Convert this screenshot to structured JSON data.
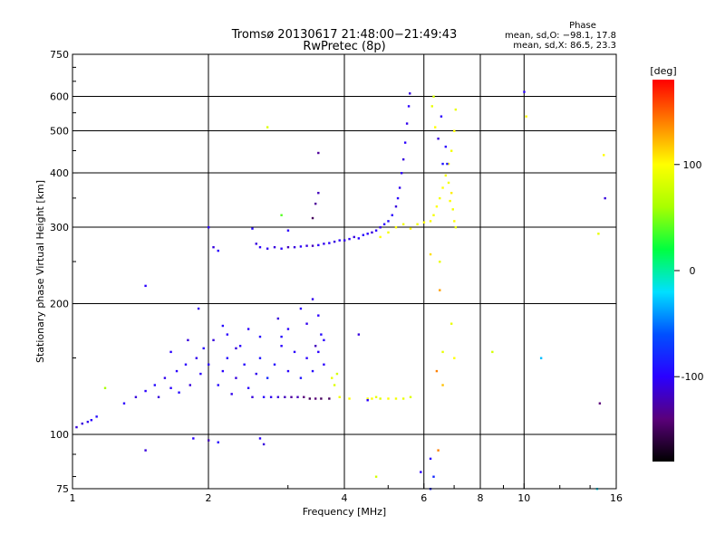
{
  "chart_data": {
    "type": "scatter",
    "title": "Tromsø 20130617 21:48:00−21:49:43",
    "subtitle": "RwPretec (8p)",
    "xlabel": "Frequency [MHz]",
    "ylabel": "Stationary phase Virtual Height [km]",
    "x_scale": "log",
    "y_scale": "log",
    "xlim": [
      1,
      16
    ],
    "ylim": [
      75,
      750
    ],
    "x_ticks": [
      {
        "value": 1,
        "label": "1"
      },
      {
        "value": 2,
        "label": "2"
      },
      {
        "value": 4,
        "label": "4"
      },
      {
        "value": 6,
        "label": "6"
      },
      {
        "value": 8,
        "label": "8"
      },
      {
        "value": 10,
        "label": "10"
      },
      {
        "value": 16,
        "label": "16"
      }
    ],
    "y_ticks": [
      {
        "value": 75,
        "label": "75"
      },
      {
        "value": 100,
        "label": "100"
      },
      {
        "value": 200,
        "label": "200"
      },
      {
        "value": 300,
        "label": "300"
      },
      {
        "value": 400,
        "label": "400"
      },
      {
        "value": 500,
        "label": "500"
      },
      {
        "value": 600,
        "label": "600"
      },
      {
        "value": 750,
        "label": "750"
      }
    ],
    "grid_x": [
      2,
      4,
      6,
      8,
      10
    ],
    "grid_y": [
      100,
      200,
      300,
      400,
      500,
      600
    ],
    "stats": {
      "heading": "Phase",
      "line1": "mean, sd,O: −98.1, 17.8",
      "line2": "mean, sd,X:  86.5, 23.3"
    },
    "colorbar": {
      "label": "[deg]",
      "range": [
        -180,
        180
      ],
      "ticks": [
        {
          "value": 100,
          "label": "100"
        },
        {
          "value": 0,
          "label": "0"
        },
        {
          "value": -100,
          "label": "-100"
        }
      ],
      "colors": [
        "#000000",
        "#5a007a",
        "#2a00ff",
        "#0050ff",
        "#00e0ff",
        "#00ff40",
        "#a8ff00",
        "#ffff00",
        "#ff8000",
        "#ff0000"
      ]
    },
    "series": [
      {
        "group": "lower_trace",
        "points": [
          [
            1.02,
            104,
            -110
          ],
          [
            1.05,
            106,
            -110
          ],
          [
            1.08,
            107,
            -105
          ],
          [
            1.1,
            108,
            -100
          ],
          [
            1.13,
            110,
            -95
          ],
          [
            1.18,
            128,
            60
          ],
          [
            1.3,
            118,
            -100
          ],
          [
            1.38,
            122,
            -110
          ],
          [
            1.45,
            126,
            -100
          ],
          [
            1.52,
            130,
            -95
          ],
          [
            1.55,
            122,
            -110
          ],
          [
            1.6,
            135,
            -105
          ],
          [
            1.65,
            128,
            -100
          ],
          [
            1.7,
            140,
            -100
          ],
          [
            1.72,
            125,
            -95
          ],
          [
            1.78,
            145,
            -100
          ],
          [
            1.82,
            130,
            -110
          ],
          [
            1.88,
            150,
            -105
          ],
          [
            1.92,
            138,
            -100
          ],
          [
            1.95,
            158,
            -95
          ],
          [
            2.0,
            145,
            -100
          ],
          [
            2.05,
            165,
            -110
          ],
          [
            2.1,
            130,
            -95
          ],
          [
            2.15,
            140,
            -100
          ],
          [
            2.2,
            150,
            -95
          ],
          [
            2.25,
            124,
            -105
          ],
          [
            2.3,
            135,
            -110
          ],
          [
            2.35,
            160,
            -100
          ],
          [
            2.4,
            145,
            -95
          ],
          [
            2.45,
            128,
            -100
          ],
          [
            2.5,
            122,
            -110
          ],
          [
            2.55,
            138,
            -105
          ],
          [
            2.6,
            150,
            -90
          ],
          [
            2.65,
            122,
            -100
          ],
          [
            2.7,
            135,
            -80
          ],
          [
            2.75,
            122,
            -105
          ],
          [
            2.8,
            145,
            -95
          ],
          [
            2.85,
            122,
            -110
          ],
          [
            2.9,
            160,
            -100
          ],
          [
            2.95,
            122,
            -120
          ],
          [
            3.0,
            140,
            -100
          ],
          [
            3.05,
            122,
            -130
          ],
          [
            3.1,
            155,
            -100
          ],
          [
            3.15,
            122,
            -120
          ],
          [
            3.2,
            135,
            -90
          ],
          [
            3.25,
            122,
            -140
          ],
          [
            3.3,
            150,
            -100
          ],
          [
            3.35,
            121,
            -150
          ],
          [
            3.4,
            140,
            -95
          ],
          [
            3.45,
            121,
            -140
          ],
          [
            3.5,
            155,
            -100
          ],
          [
            3.55,
            121,
            -150
          ],
          [
            3.6,
            145,
            -100
          ],
          [
            3.7,
            121,
            -150
          ],
          [
            3.75,
            135,
            90
          ],
          [
            3.8,
            130,
            85
          ],
          [
            3.85,
            138,
            80
          ],
          [
            3.9,
            122,
            95
          ],
          [
            4.1,
            121,
            100
          ],
          [
            4.5,
            121,
            95
          ],
          [
            4.6,
            121,
            100
          ],
          [
            4.7,
            122,
            90
          ],
          [
            4.8,
            121,
            85
          ],
          [
            5.0,
            121,
            100
          ],
          [
            5.2,
            121,
            95
          ],
          [
            5.4,
            121,
            90
          ],
          [
            5.6,
            122,
            85
          ]
        ]
      },
      {
        "group": "lower_spread",
        "points": [
          [
            1.45,
            92,
            -110
          ],
          [
            1.85,
            98,
            -100
          ],
          [
            2.0,
            97,
            -120
          ],
          [
            2.1,
            96,
            -95
          ],
          [
            2.6,
            98,
            -100
          ],
          [
            2.65,
            95,
            -110
          ],
          [
            1.45,
            220,
            -100
          ],
          [
            1.9,
            195,
            -105
          ],
          [
            2.15,
            178,
            -95
          ],
          [
            2.45,
            175,
            -100
          ],
          [
            2.85,
            185,
            -110
          ],
          [
            3.2,
            195,
            -100
          ],
          [
            3.4,
            205,
            -105
          ],
          [
            3.5,
            188,
            -100
          ],
          [
            3.55,
            170,
            -95
          ],
          [
            1.8,
            165,
            -110
          ],
          [
            2.2,
            170,
            -100
          ],
          [
            2.6,
            168,
            -95
          ],
          [
            3.0,
            175,
            -100
          ],
          [
            3.3,
            180,
            -105
          ],
          [
            3.6,
            165,
            -100
          ],
          [
            1.65,
            155,
            -100
          ],
          [
            2.3,
            158,
            -110
          ],
          [
            2.9,
            168,
            -95
          ],
          [
            3.45,
            160,
            -120
          ]
        ]
      },
      {
        "group": "upper_trace",
        "points": [
          [
            2.0,
            300,
            -100
          ],
          [
            2.05,
            270,
            -110
          ],
          [
            2.1,
            265,
            -100
          ],
          [
            2.5,
            298,
            -95
          ],
          [
            2.55,
            275,
            -110
          ],
          [
            2.6,
            270,
            -100
          ],
          [
            2.7,
            268,
            -105
          ],
          [
            2.8,
            270,
            -110
          ],
          [
            2.9,
            268,
            -100
          ],
          [
            3.0,
            270,
            -120
          ],
          [
            3.1,
            270,
            -110
          ],
          [
            3.2,
            271,
            -100
          ],
          [
            3.3,
            272,
            -110
          ],
          [
            3.4,
            272,
            -120
          ],
          [
            3.5,
            273,
            -100
          ],
          [
            3.6,
            275,
            -105
          ],
          [
            3.7,
            276,
            -100
          ],
          [
            3.8,
            278,
            -110
          ],
          [
            3.9,
            280,
            -100
          ],
          [
            4.0,
            280,
            -105
          ],
          [
            4.1,
            282,
            -100
          ],
          [
            4.2,
            285,
            -110
          ],
          [
            4.3,
            283,
            -100
          ],
          [
            4.4,
            288,
            -95
          ],
          [
            4.5,
            290,
            -100
          ],
          [
            4.6,
            292,
            -110
          ],
          [
            4.7,
            295,
            -100
          ],
          [
            4.8,
            300,
            -105
          ],
          [
            4.9,
            305,
            -100
          ],
          [
            5.0,
            310,
            -95
          ],
          [
            5.1,
            320,
            -100
          ],
          [
            5.2,
            335,
            -110
          ],
          [
            5.25,
            350,
            -100
          ],
          [
            5.3,
            370,
            -105
          ],
          [
            5.35,
            400,
            -100
          ],
          [
            5.4,
            430,
            -110
          ],
          [
            5.45,
            470,
            -100
          ],
          [
            5.5,
            520,
            -105
          ],
          [
            5.55,
            570,
            -100
          ],
          [
            5.58,
            610,
            -110
          ],
          [
            3.5,
            360,
            -120
          ],
          [
            3.4,
            315,
            -150
          ],
          [
            3.45,
            340,
            -130
          ],
          [
            3.5,
            445,
            -130
          ],
          [
            2.7,
            510,
            85
          ],
          [
            2.9,
            320,
            40
          ],
          [
            3.0,
            295,
            -100
          ]
        ]
      },
      {
        "group": "x_trace",
        "points": [
          [
            4.8,
            285,
            100
          ],
          [
            5.0,
            292,
            95
          ],
          [
            5.2,
            300,
            100
          ],
          [
            5.4,
            305,
            95
          ],
          [
            5.6,
            298,
            100
          ],
          [
            5.8,
            305,
            95
          ],
          [
            6.0,
            308,
            100
          ],
          [
            6.2,
            310,
            100
          ],
          [
            6.3,
            320,
            95
          ],
          [
            6.4,
            335,
            100
          ],
          [
            6.5,
            350,
            95
          ],
          [
            6.6,
            370,
            100
          ],
          [
            6.7,
            395,
            95
          ],
          [
            6.8,
            420,
            100
          ],
          [
            6.9,
            450,
            95
          ],
          [
            7.0,
            500,
            100
          ],
          [
            7.05,
            560,
            90
          ],
          [
            6.2,
            260,
            110
          ],
          [
            6.5,
            250,
            90
          ],
          [
            6.6,
            420,
            -90
          ],
          [
            6.55,
            540,
            -100
          ],
          [
            6.45,
            480,
            -110
          ],
          [
            6.3,
            600,
            80
          ],
          [
            6.25,
            570,
            90
          ],
          [
            6.35,
            510,
            100
          ],
          [
            6.7,
            460,
            -100
          ],
          [
            6.75,
            420,
            -90
          ],
          [
            6.8,
            380,
            95
          ],
          [
            6.85,
            345,
            100
          ],
          [
            6.9,
            360,
            105
          ],
          [
            6.95,
            330,
            95
          ],
          [
            7.0,
            310,
            100
          ],
          [
            7.05,
            300,
            90
          ]
        ]
      },
      {
        "group": "scattered",
        "points": [
          [
            6.5,
            215,
            130
          ],
          [
            6.9,
            180,
            90
          ],
          [
            6.6,
            155,
            90
          ],
          [
            7.0,
            150,
            100
          ],
          [
            6.4,
            140,
            140
          ],
          [
            6.6,
            130,
            120
          ],
          [
            6.45,
            92,
            140
          ],
          [
            6.3,
            80,
            -80
          ],
          [
            6.2,
            75,
            -80
          ],
          [
            6.2,
            88,
            -100
          ],
          [
            5.9,
            82,
            -100
          ],
          [
            4.7,
            80,
            80
          ],
          [
            8.5,
            155,
            80
          ],
          [
            10.0,
            615,
            -100
          ],
          [
            10.1,
            540,
            100
          ],
          [
            10.9,
            150,
            -30
          ],
          [
            14.6,
            290,
            90
          ],
          [
            15.0,
            440,
            100
          ],
          [
            15.1,
            350,
            -110
          ],
          [
            14.7,
            118,
            -140
          ],
          [
            14.5,
            75,
            -20
          ],
          [
            4.5,
            120,
            -100
          ],
          [
            4.3,
            170,
            -110
          ]
        ]
      }
    ]
  }
}
